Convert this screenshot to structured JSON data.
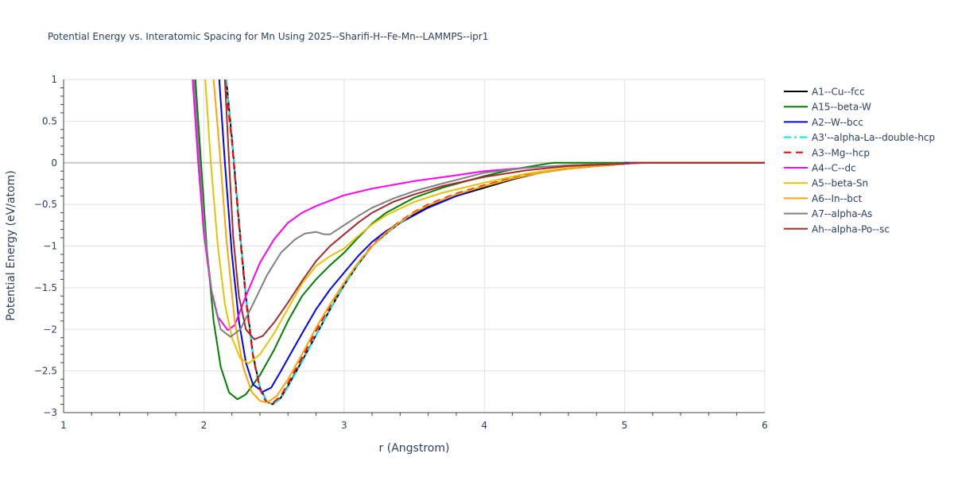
{
  "chart_data": {
    "type": "line",
    "title": "Potential Energy vs. Interatomic Spacing for Mn Using 2025--Sharifi-H--Fe-Mn--LAMMPS--ipr1",
    "xlabel": "r (Angstrom)",
    "ylabel": "Potential Energy (eV/atom)",
    "xlim": [
      1,
      6
    ],
    "ylim": [
      -3,
      1
    ],
    "xticks": [
      1,
      2,
      3,
      4,
      5,
      6
    ],
    "yticks": [
      1,
      0.5,
      0,
      -0.5,
      -1,
      -1.5,
      -2,
      -2.5,
      -3
    ],
    "ytick_labels": [
      "1",
      "0.5",
      "0",
      "−0.5",
      "−1",
      "−1.5",
      "−2",
      "−2.5",
      "−3"
    ],
    "grid": true,
    "legend_position": "right",
    "series": [
      {
        "name": "A1--Cu--fcc",
        "color": "#000000",
        "dash": "solid",
        "points": [
          [
            2.16,
            1
          ],
          [
            2.2,
            0.3
          ],
          [
            2.25,
            -0.7
          ],
          [
            2.3,
            -1.6
          ],
          [
            2.35,
            -2.3
          ],
          [
            2.4,
            -2.7
          ],
          [
            2.45,
            -2.87
          ],
          [
            2.49,
            -2.9
          ],
          [
            2.55,
            -2.82
          ],
          [
            2.6,
            -2.68
          ],
          [
            2.7,
            -2.38
          ],
          [
            2.8,
            -2.07
          ],
          [
            2.9,
            -1.76
          ],
          [
            3.0,
            -1.47
          ],
          [
            3.1,
            -1.22
          ],
          [
            3.2,
            -1.0
          ],
          [
            3.3,
            -0.85
          ],
          [
            3.4,
            -0.72
          ],
          [
            3.5,
            -0.62
          ],
          [
            3.6,
            -0.53
          ],
          [
            3.8,
            -0.4
          ],
          [
            4.0,
            -0.3
          ],
          [
            4.2,
            -0.2
          ],
          [
            4.4,
            -0.12
          ],
          [
            4.6,
            -0.07
          ],
          [
            4.8,
            -0.04
          ],
          [
            4.95,
            -0.02
          ],
          [
            5.1,
            0
          ],
          [
            6,
            0
          ]
        ]
      },
      {
        "name": "A15--beta-W",
        "color": "#008000",
        "dash": "solid",
        "points": [
          [
            1.94,
            1
          ],
          [
            1.98,
            0
          ],
          [
            2.02,
            -1.0
          ],
          [
            2.07,
            -1.9
          ],
          [
            2.12,
            -2.45
          ],
          [
            2.18,
            -2.76
          ],
          [
            2.24,
            -2.84
          ],
          [
            2.3,
            -2.78
          ],
          [
            2.4,
            -2.55
          ],
          [
            2.5,
            -2.25
          ],
          [
            2.6,
            -1.9
          ],
          [
            2.7,
            -1.6
          ],
          [
            2.8,
            -1.4
          ],
          [
            2.9,
            -1.23
          ],
          [
            3.0,
            -1.08
          ],
          [
            3.1,
            -0.9
          ],
          [
            3.2,
            -0.73
          ],
          [
            3.3,
            -0.6
          ],
          [
            3.5,
            -0.42
          ],
          [
            3.7,
            -0.3
          ],
          [
            4.0,
            -0.16
          ],
          [
            4.2,
            -0.08
          ],
          [
            4.45,
            -0.01
          ],
          [
            4.5,
            0
          ],
          [
            6,
            0
          ]
        ]
      },
      {
        "name": "A2--W--bcc",
        "color": "#0000ff",
        "dash": "solid",
        "points": [
          [
            2.11,
            1
          ],
          [
            2.15,
            0
          ],
          [
            2.2,
            -1.1
          ],
          [
            2.25,
            -1.9
          ],
          [
            2.3,
            -2.4
          ],
          [
            2.35,
            -2.66
          ],
          [
            2.42,
            -2.75
          ],
          [
            2.48,
            -2.7
          ],
          [
            2.55,
            -2.5
          ],
          [
            2.6,
            -2.35
          ],
          [
            2.7,
            -2.05
          ],
          [
            2.8,
            -1.76
          ],
          [
            2.9,
            -1.52
          ],
          [
            3.0,
            -1.32
          ],
          [
            3.1,
            -1.12
          ],
          [
            3.2,
            -0.95
          ],
          [
            3.3,
            -0.82
          ],
          [
            3.4,
            -0.72
          ],
          [
            3.5,
            -0.63
          ],
          [
            3.6,
            -0.54
          ],
          [
            3.8,
            -0.4
          ],
          [
            4.0,
            -0.28
          ],
          [
            4.2,
            -0.19
          ],
          [
            4.4,
            -0.12
          ],
          [
            4.6,
            -0.07
          ],
          [
            4.8,
            -0.04
          ],
          [
            4.95,
            -0.02
          ],
          [
            5.0,
            0
          ],
          [
            6,
            0
          ]
        ]
      },
      {
        "name": "A3'--alpha-La--double-hcp",
        "color": "#00e5e5",
        "dash": "dashdot",
        "points": [
          [
            2.16,
            1
          ],
          [
            2.2,
            0.3
          ],
          [
            2.25,
            -0.7
          ],
          [
            2.3,
            -1.6
          ],
          [
            2.35,
            -2.3
          ],
          [
            2.4,
            -2.7
          ],
          [
            2.45,
            -2.87
          ],
          [
            2.49,
            -2.9
          ],
          [
            2.55,
            -2.83
          ],
          [
            2.6,
            -2.69
          ],
          [
            2.7,
            -2.39
          ],
          [
            2.8,
            -2.07
          ],
          [
            2.9,
            -1.76
          ],
          [
            3.0,
            -1.47
          ],
          [
            3.1,
            -1.22
          ],
          [
            3.2,
            -1.0
          ],
          [
            3.3,
            -0.85
          ],
          [
            3.4,
            -0.72
          ],
          [
            3.5,
            -0.6
          ],
          [
            3.6,
            -0.51
          ],
          [
            3.8,
            -0.38
          ],
          [
            4.0,
            -0.28
          ],
          [
            4.2,
            -0.19
          ],
          [
            4.4,
            -0.12
          ],
          [
            4.6,
            -0.07
          ],
          [
            4.8,
            -0.04
          ],
          [
            4.95,
            -0.02
          ],
          [
            5.1,
            0
          ],
          [
            6,
            0
          ]
        ]
      },
      {
        "name": "A3--Mg--hcp",
        "color": "#ff0000",
        "dash": "dash",
        "points": [
          [
            2.15,
            1
          ],
          [
            2.2,
            0.25
          ],
          [
            2.25,
            -0.75
          ],
          [
            2.3,
            -1.65
          ],
          [
            2.35,
            -2.32
          ],
          [
            2.4,
            -2.72
          ],
          [
            2.44,
            -2.86
          ],
          [
            2.48,
            -2.9
          ],
          [
            2.55,
            -2.8
          ],
          [
            2.6,
            -2.65
          ],
          [
            2.7,
            -2.34
          ],
          [
            2.8,
            -2.02
          ],
          [
            2.9,
            -1.72
          ],
          [
            3.0,
            -1.44
          ],
          [
            3.1,
            -1.2
          ],
          [
            3.2,
            -0.99
          ],
          [
            3.3,
            -0.83
          ],
          [
            3.4,
            -0.7
          ],
          [
            3.5,
            -0.59
          ],
          [
            3.6,
            -0.5
          ],
          [
            3.8,
            -0.37
          ],
          [
            4.0,
            -0.27
          ],
          [
            4.2,
            -0.18
          ],
          [
            4.4,
            -0.11
          ],
          [
            4.6,
            -0.07
          ],
          [
            4.8,
            -0.04
          ],
          [
            4.95,
            -0.02
          ],
          [
            5.1,
            0
          ],
          [
            6,
            0
          ]
        ]
      },
      {
        "name": "A4--C--dc",
        "color": "#ff00ff",
        "dash": "solid",
        "points": [
          [
            1.92,
            1
          ],
          [
            1.96,
            0
          ],
          [
            2.0,
            -0.85
          ],
          [
            2.05,
            -1.5
          ],
          [
            2.1,
            -1.85
          ],
          [
            2.17,
            -2.01
          ],
          [
            2.22,
            -1.95
          ],
          [
            2.3,
            -1.6
          ],
          [
            2.4,
            -1.2
          ],
          [
            2.5,
            -0.92
          ],
          [
            2.6,
            -0.72
          ],
          [
            2.7,
            -0.6
          ],
          [
            2.8,
            -0.52
          ],
          [
            3.0,
            -0.39
          ],
          [
            3.2,
            -0.31
          ],
          [
            3.5,
            -0.22
          ],
          [
            3.8,
            -0.15
          ],
          [
            4.0,
            -0.1
          ],
          [
            4.3,
            -0.06
          ],
          [
            4.6,
            -0.03
          ],
          [
            5.0,
            -0.01
          ],
          [
            5.2,
            0
          ],
          [
            6,
            0
          ]
        ]
      },
      {
        "name": "A5--beta-Sn",
        "color": "#e6c300",
        "dash": "solid",
        "points": [
          [
            2.01,
            1
          ],
          [
            2.05,
            0
          ],
          [
            2.1,
            -1.0
          ],
          [
            2.15,
            -1.7
          ],
          [
            2.2,
            -2.1
          ],
          [
            2.26,
            -2.35
          ],
          [
            2.32,
            -2.41
          ],
          [
            2.4,
            -2.3
          ],
          [
            2.5,
            -2.05
          ],
          [
            2.6,
            -1.75
          ],
          [
            2.7,
            -1.45
          ],
          [
            2.8,
            -1.24
          ],
          [
            2.9,
            -1.12
          ],
          [
            3.0,
            -1.03
          ],
          [
            3.1,
            -0.88
          ],
          [
            3.2,
            -0.74
          ],
          [
            3.3,
            -0.63
          ],
          [
            3.5,
            -0.47
          ],
          [
            3.7,
            -0.36
          ],
          [
            4.0,
            -0.24
          ],
          [
            4.3,
            -0.13
          ],
          [
            4.6,
            -0.06
          ],
          [
            5.0,
            -0.01
          ],
          [
            5.1,
            0
          ],
          [
            6,
            0
          ]
        ]
      },
      {
        "name": "A6--In--bct",
        "color": "#ffa500",
        "dash": "solid",
        "points": [
          [
            2.07,
            1
          ],
          [
            2.11,
            0.2
          ],
          [
            2.16,
            -0.9
          ],
          [
            2.22,
            -1.9
          ],
          [
            2.28,
            -2.45
          ],
          [
            2.34,
            -2.75
          ],
          [
            2.4,
            -2.86
          ],
          [
            2.45,
            -2.88
          ],
          [
            2.52,
            -2.8
          ],
          [
            2.6,
            -2.6
          ],
          [
            2.7,
            -2.3
          ],
          [
            2.8,
            -1.98
          ],
          [
            2.9,
            -1.7
          ],
          [
            3.0,
            -1.44
          ],
          [
            3.1,
            -1.2
          ],
          [
            3.2,
            -1.0
          ],
          [
            3.3,
            -0.84
          ],
          [
            3.4,
            -0.71
          ],
          [
            3.5,
            -0.6
          ],
          [
            3.6,
            -0.51
          ],
          [
            3.8,
            -0.38
          ],
          [
            4.0,
            -0.28
          ],
          [
            4.2,
            -0.19
          ],
          [
            4.4,
            -0.12
          ],
          [
            4.6,
            -0.07
          ],
          [
            4.8,
            -0.04
          ],
          [
            5.0,
            -0.01
          ],
          [
            5.1,
            0
          ],
          [
            6,
            0
          ]
        ]
      },
      {
        "name": "A7--alpha-As",
        "color": "#808080",
        "dash": "solid",
        "points": [
          [
            1.93,
            1
          ],
          [
            1.97,
            0
          ],
          [
            2.01,
            -0.9
          ],
          [
            2.06,
            -1.6
          ],
          [
            2.12,
            -2.0
          ],
          [
            2.19,
            -2.09
          ],
          [
            2.26,
            -2.0
          ],
          [
            2.35,
            -1.7
          ],
          [
            2.45,
            -1.35
          ],
          [
            2.55,
            -1.08
          ],
          [
            2.65,
            -0.92
          ],
          [
            2.72,
            -0.85
          ],
          [
            2.8,
            -0.83
          ],
          [
            2.86,
            -0.86
          ],
          [
            2.9,
            -0.86
          ],
          [
            3.0,
            -0.75
          ],
          [
            3.1,
            -0.64
          ],
          [
            3.2,
            -0.54
          ],
          [
            3.35,
            -0.43
          ],
          [
            3.5,
            -0.34
          ],
          [
            3.7,
            -0.25
          ],
          [
            4.0,
            -0.12
          ],
          [
            4.3,
            -0.06
          ],
          [
            4.6,
            -0.03
          ],
          [
            5.0,
            -0.01
          ],
          [
            5.1,
            0
          ],
          [
            6,
            0
          ]
        ]
      },
      {
        "name": "Ah--alpha-Po--sc",
        "color": "#a52a2a",
        "dash": "solid",
        "points": [
          [
            2.15,
            1
          ],
          [
            2.18,
            0
          ],
          [
            2.21,
            -0.9
          ],
          [
            2.25,
            -1.6
          ],
          [
            2.3,
            -2.0
          ],
          [
            2.36,
            -2.12
          ],
          [
            2.42,
            -2.08
          ],
          [
            2.5,
            -1.92
          ],
          [
            2.6,
            -1.68
          ],
          [
            2.7,
            -1.42
          ],
          [
            2.8,
            -1.18
          ],
          [
            2.9,
            -1.0
          ],
          [
            3.0,
            -0.86
          ],
          [
            3.1,
            -0.72
          ],
          [
            3.2,
            -0.6
          ],
          [
            3.35,
            -0.47
          ],
          [
            3.5,
            -0.38
          ],
          [
            3.7,
            -0.28
          ],
          [
            4.0,
            -0.17
          ],
          [
            4.3,
            -0.09
          ],
          [
            4.6,
            -0.04
          ],
          [
            5.0,
            -0.01
          ],
          [
            5.1,
            0
          ],
          [
            6,
            0
          ]
        ]
      }
    ]
  }
}
